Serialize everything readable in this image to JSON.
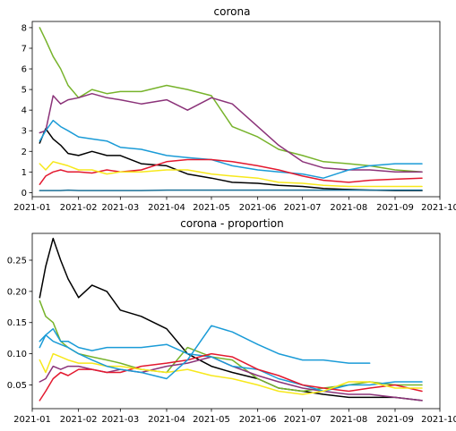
{
  "chart_data": [
    {
      "type": "line",
      "title": "corona",
      "xlabel": "",
      "ylabel": "",
      "grid": false,
      "legend": "none",
      "x": [
        "2021-01-06",
        "2021-01-10",
        "2021-01-15",
        "2021-01-20",
        "2021-01-25",
        "2021-02-01",
        "2021-02-10",
        "2021-02-20",
        "2021-03-01",
        "2021-03-15",
        "2021-04-01",
        "2021-04-15",
        "2021-05-01",
        "2021-05-15",
        "2021-06-01",
        "2021-06-15",
        "2021-07-01",
        "2021-07-15",
        "2021-08-01",
        "2021-08-15",
        "2021-09-01",
        "2021-09-19"
      ],
      "xticks": [
        "2021-01",
        "2021-02",
        "2021-03",
        "2021-04",
        "2021-05",
        "2021-06",
        "2021-07",
        "2021-08",
        "2021-09",
        "2021-10"
      ],
      "xlim": [
        "2021-01-01",
        "2021-10-01"
      ],
      "yticks": [
        "0",
        "1",
        "2",
        "3",
        "4",
        "5",
        "6",
        "7",
        "8"
      ],
      "ylim": [
        -0.2,
        8.3
      ],
      "series": [
        {
          "color": "#000000",
          "values": [
            2.4,
            3.1,
            2.6,
            2.3,
            1.9,
            1.8,
            2.0,
            1.8,
            1.8,
            1.4,
            1.3,
            0.9,
            0.7,
            0.5,
            0.45,
            0.35,
            0.3,
            0.2,
            0.15,
            0.12,
            0.1,
            0.1
          ]
        },
        {
          "color": "#77b32b",
          "values": [
            8.0,
            7.4,
            6.6,
            6.0,
            5.2,
            4.6,
            5.0,
            4.8,
            4.9,
            4.9,
            5.2,
            5.0,
            4.7,
            3.2,
            2.7,
            2.1,
            1.8,
            1.5,
            1.4,
            1.3,
            1.1,
            1.0
          ]
        },
        {
          "color": "#8b3379",
          "values": [
            2.9,
            3.0,
            4.7,
            4.3,
            4.5,
            4.6,
            4.8,
            4.6,
            4.5,
            4.3,
            4.5,
            4.0,
            4.6,
            4.3,
            3.2,
            2.3,
            1.5,
            1.2,
            1.1,
            1.1,
            1.0,
            1.0
          ]
        },
        {
          "color": "#1a9bd7",
          "values": [
            2.5,
            3.0,
            3.5,
            3.2,
            3.0,
            2.7,
            2.6,
            2.5,
            2.2,
            2.1,
            1.8,
            1.7,
            1.6,
            1.3,
            1.1,
            1.0,
            0.9,
            0.7,
            1.1,
            1.3,
            1.4,
            1.4
          ]
        },
        {
          "color": "#e3192f",
          "values": [
            0.4,
            0.8,
            1.0,
            1.1,
            1.0,
            1.0,
            0.95,
            1.1,
            1.0,
            1.1,
            1.5,
            1.6,
            1.6,
            1.5,
            1.3,
            1.1,
            0.8,
            0.6,
            0.5,
            0.6,
            0.65,
            0.7
          ]
        },
        {
          "color": "#f7e81b",
          "values": [
            1.4,
            1.1,
            1.5,
            1.4,
            1.3,
            1.1,
            1.1,
            0.9,
            1.0,
            1.0,
            1.1,
            1.1,
            0.9,
            0.8,
            0.7,
            0.5,
            0.45,
            0.35,
            0.3,
            0.3,
            0.3,
            0.3
          ]
        },
        {
          "color": "#1a6f96",
          "values": [
            0.1,
            0.1,
            0.1,
            0.1,
            0.12,
            0.1,
            0.1,
            0.1,
            0.1,
            0.1,
            0.12,
            0.12,
            0.12,
            0.12,
            0.12,
            0.12,
            0.12,
            0.12,
            0.12,
            0.12,
            0.12,
            0.12
          ]
        }
      ]
    },
    {
      "type": "line",
      "title": "corona - proportion",
      "xlabel": "",
      "ylabel": "",
      "grid": false,
      "legend": "none",
      "x": [
        "2021-01-06",
        "2021-01-10",
        "2021-01-15",
        "2021-01-20",
        "2021-01-25",
        "2021-02-01",
        "2021-02-10",
        "2021-02-20",
        "2021-03-01",
        "2021-03-15",
        "2021-04-01",
        "2021-04-15",
        "2021-05-01",
        "2021-05-15",
        "2021-06-01",
        "2021-06-15",
        "2021-07-01",
        "2021-07-15",
        "2021-08-01",
        "2021-08-15",
        "2021-09-01",
        "2021-09-19"
      ],
      "xticks": [
        "2021-01",
        "2021-02",
        "2021-03",
        "2021-04",
        "2021-05",
        "2021-06",
        "2021-07",
        "2021-08",
        "2021-09",
        "2021-10"
      ],
      "xlim": [
        "2021-01-01",
        "2021-10-01"
      ],
      "yticks": [
        "0.05",
        "0.10",
        "0.15",
        "0.20",
        "0.25"
      ],
      "ylim": [
        0.012,
        0.293
      ],
      "series": [
        {
          "color": "#000000",
          "values": [
            0.19,
            0.24,
            0.285,
            0.25,
            0.22,
            0.19,
            0.21,
            0.2,
            0.17,
            0.16,
            0.14,
            0.1,
            0.08,
            0.07,
            0.06,
            0.045,
            0.04,
            0.035,
            0.03,
            0.03,
            0.03,
            0.025
          ]
        },
        {
          "color": "#77b32b",
          "values": [
            0.185,
            0.16,
            0.15,
            0.12,
            0.11,
            0.1,
            0.095,
            0.09,
            0.085,
            0.075,
            0.07,
            0.11,
            0.095,
            0.09,
            0.06,
            0.045,
            0.04,
            0.045,
            0.05,
            0.055,
            0.05,
            0.05
          ]
        },
        {
          "color": "#8b3379",
          "values": [
            0.055,
            0.06,
            0.08,
            0.075,
            0.08,
            0.08,
            0.075,
            0.07,
            0.075,
            0.07,
            0.08,
            0.085,
            0.095,
            0.08,
            0.065,
            0.055,
            0.045,
            0.04,
            0.035,
            0.035,
            0.03,
            0.025
          ]
        },
        {
          "color": "#1a9bd7",
          "values": [
            0.11,
            0.13,
            0.14,
            0.12,
            0.12,
            0.11,
            0.105,
            0.11,
            0.11,
            0.11,
            0.115,
            0.1,
            0.095,
            0.08,
            0.075,
            0.06,
            0.05,
            0.04,
            0.05,
            0.05,
            0.055,
            0.055
          ]
        },
        {
          "color": "#e3192f",
          "values": [
            0.025,
            0.04,
            0.06,
            0.07,
            0.065,
            0.075,
            0.075,
            0.07,
            0.07,
            0.08,
            0.085,
            0.09,
            0.1,
            0.095,
            0.075,
            0.065,
            0.05,
            0.045,
            0.04,
            0.045,
            0.05,
            0.04
          ]
        },
        {
          "color": "#f7e81b",
          "values": [
            0.09,
            0.07,
            0.1,
            0.095,
            0.09,
            0.085,
            0.085,
            0.08,
            0.08,
            0.075,
            0.07,
            0.075,
            0.065,
            0.06,
            0.05,
            0.04,
            0.035,
            0.04,
            0.055,
            0.055,
            0.045,
            0.045
          ]
        },
        {
          "color": "#1a9bd7",
          "values": [
            0.12,
            0.13,
            0.12,
            0.115,
            0.11,
            0.1,
            0.09,
            0.08,
            0.075,
            0.07,
            0.06,
            0.09,
            0.145,
            0.135,
            0.115,
            0.1,
            0.09,
            0.09,
            0.085,
            0.085,
            null,
            null
          ]
        }
      ]
    }
  ]
}
